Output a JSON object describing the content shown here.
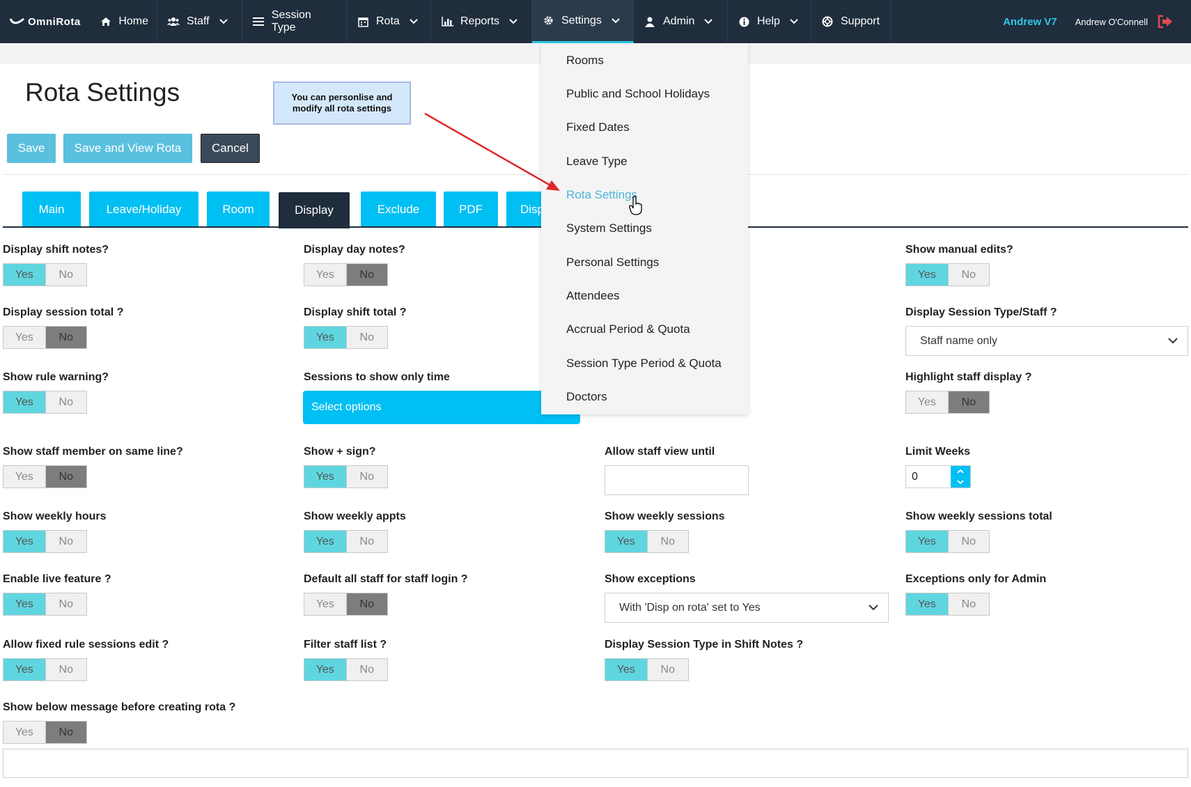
{
  "nav": {
    "logo": "OmniRota",
    "items": [
      {
        "label": "Home",
        "icon": "home-icon",
        "dropdown": false
      },
      {
        "label": "Staff",
        "icon": "users-icon",
        "dropdown": true
      },
      {
        "label": "Session Type",
        "icon": "list-icon",
        "dropdown": false
      },
      {
        "label": "Rota",
        "icon": "calendar-icon",
        "dropdown": true
      },
      {
        "label": "Reports",
        "icon": "bar-chart-icon",
        "dropdown": true
      },
      {
        "label": "Settings",
        "icon": "gear-icon",
        "dropdown": true,
        "active": true
      },
      {
        "label": "Admin",
        "icon": "user-icon",
        "dropdown": true
      },
      {
        "label": "Help",
        "icon": "info-icon",
        "dropdown": true
      },
      {
        "label": "Support",
        "icon": "lifebuoy-icon",
        "dropdown": false
      }
    ],
    "user_short": "Andrew V7",
    "user_full": "Andrew O'Connell"
  },
  "page": {
    "title": "Rota Settings",
    "callout": "You can personlise and modify all rota settings"
  },
  "buttons": {
    "save": "Save",
    "save_view": "Save and View Rota",
    "cancel": "Cancel"
  },
  "tabs": [
    "Main",
    "Leave/Holiday",
    "Room",
    "Display",
    "Exclude",
    "PDF",
    "Disp"
  ],
  "active_tab": "Display",
  "toggle": {
    "yes": "Yes",
    "no": "No"
  },
  "fields": {
    "display_shift_notes": {
      "label": "Display shift notes?",
      "value": "Yes"
    },
    "display_day_notes": {
      "label": "Display day notes?",
      "value": "No"
    },
    "show_manual_edits": {
      "label": "Show manual edits?",
      "value": "Yes"
    },
    "display_session_total": {
      "label": "Display session total ?",
      "value": "No"
    },
    "display_shift_total": {
      "label": "Display shift total ?",
      "value": "Yes"
    },
    "display_session_type_staff": {
      "label": "Display Session Type/Staff ?",
      "value": "Staff name only"
    },
    "show_rule_warning": {
      "label": "Show rule warning?",
      "value": "Yes"
    },
    "sessions_only_time": {
      "label": "Sessions to show only time",
      "value": "Select options"
    },
    "highlight_staff_display": {
      "label": "Highlight staff display ?",
      "value": "No"
    },
    "show_staff_same_line": {
      "label": "Show staff member on same line?",
      "value": "No"
    },
    "show_plus_sign": {
      "label": "Show + sign?",
      "value": "Yes"
    },
    "allow_staff_view_until": {
      "label": "Allow staff view until",
      "value": ""
    },
    "limit_weeks": {
      "label": "Limit Weeks",
      "value": "0"
    },
    "show_weekly_hours": {
      "label": "Show weekly hours",
      "value": "Yes"
    },
    "show_weekly_appts": {
      "label": "Show weekly appts",
      "value": "Yes"
    },
    "show_weekly_sessions": {
      "label": "Show weekly sessions",
      "value": "Yes"
    },
    "show_weekly_sessions_total": {
      "label": "Show weekly sessions total",
      "value": "Yes"
    },
    "enable_live_feature": {
      "label": "Enable live feature ?",
      "value": "Yes"
    },
    "default_all_staff_login": {
      "label": "Default all staff for staff login ?",
      "value": "No"
    },
    "show_exceptions": {
      "label": "Show exceptions",
      "value": "With 'Disp on rota' set to Yes"
    },
    "exceptions_only_admin": {
      "label": "Exceptions only for Admin",
      "value": "Yes"
    },
    "allow_fixed_rule_edit": {
      "label": "Allow fixed rule sessions edit ?",
      "value": "Yes"
    },
    "filter_staff_list": {
      "label": "Filter staff list ?",
      "value": "Yes"
    },
    "display_session_type_shift_notes": {
      "label": "Display Session Type in Shift Notes ?",
      "value": "Yes"
    },
    "show_message_before_rota": {
      "label": "Show below message before creating rota ?",
      "value": "No"
    }
  },
  "settings_menu": [
    "Rooms",
    "Public and School Holidays",
    "Fixed Dates",
    "Leave Type",
    "Rota Settings",
    "System Settings",
    "Personal Settings",
    "Attendees",
    "Accrual Period & Quota",
    "Session Type Period & Quota",
    "Doctors"
  ],
  "settings_menu_active": "Rota Settings",
  "colors": {
    "navbar": "#1f2d3d",
    "accent": "#00bff3",
    "toggle_yes": "#5fd6df",
    "toggle_no": "#7d7d7d",
    "arrow": "#e0282a"
  }
}
